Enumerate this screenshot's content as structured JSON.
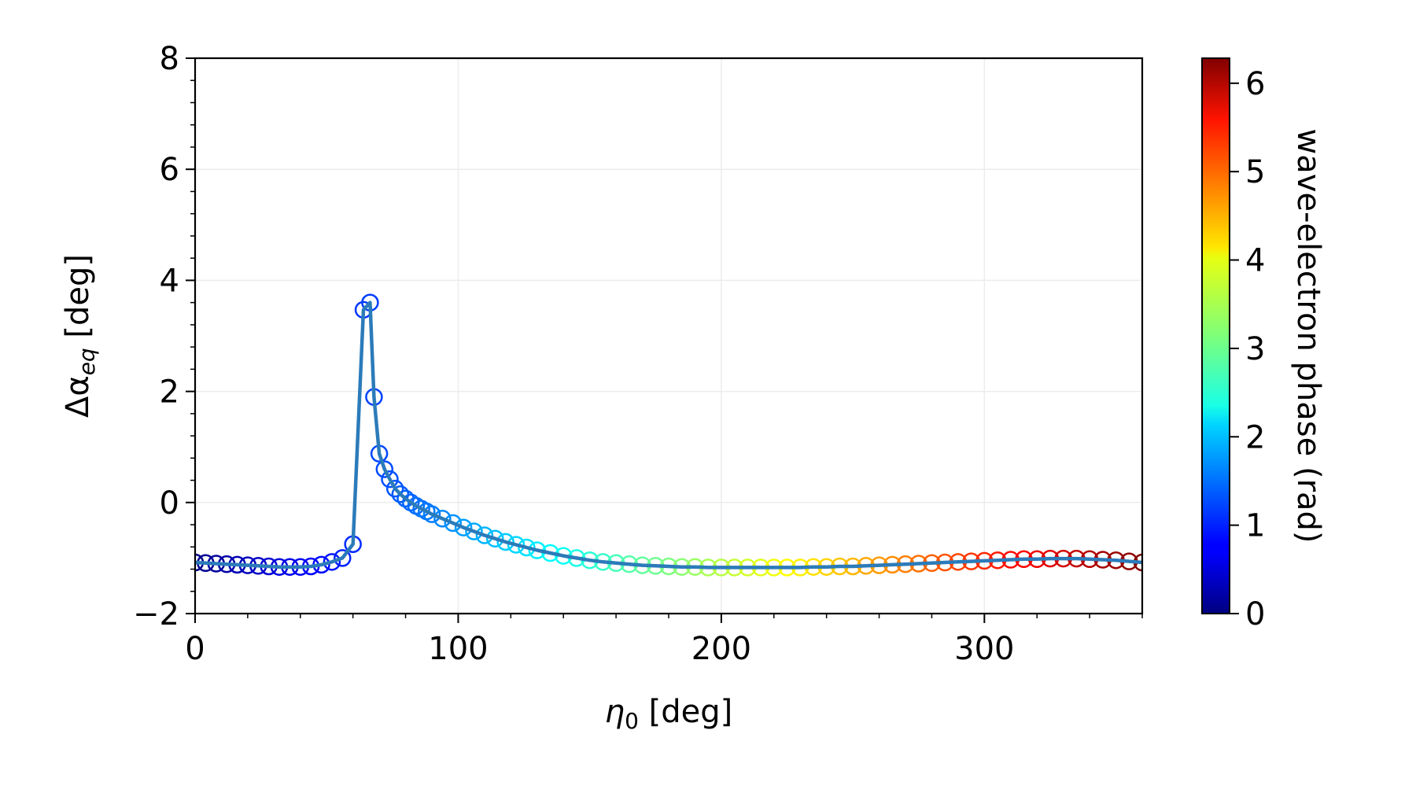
{
  "chart_data": {
    "type": "scatter",
    "xlabel_symbol": "η",
    "xlabel_sub": "0",
    "xlabel_unit": " [deg]",
    "ylabel_symbol": "Δα",
    "ylabel_sub": "eq",
    "ylabel_unit": " [deg]",
    "xlim": [
      0,
      360
    ],
    "ylim": [
      -2,
      8
    ],
    "xticks": [
      0,
      100,
      200,
      300
    ],
    "yticks": [
      -2,
      0,
      2,
      4,
      6,
      8
    ],
    "ytick_labels": [
      "−2",
      "0",
      "2",
      "4",
      "6",
      "8"
    ],
    "grid": true,
    "line_color": "#2b7bba",
    "colorbar": {
      "label": "wave-electron phase (rad)",
      "colormap": "jet",
      "range": [
        0,
        6.283
      ],
      "ticks": [
        0,
        1,
        2,
        3,
        4,
        5,
        6
      ]
    },
    "x": [
      0,
      4,
      8,
      12,
      16,
      20,
      24,
      28,
      32,
      36,
      40,
      44,
      48,
      52,
      56,
      60,
      64,
      66.5,
      68,
      70,
      72,
      74,
      76,
      78,
      80,
      82,
      84,
      86,
      88,
      90,
      94,
      98,
      102,
      106,
      110,
      114,
      118,
      122,
      126,
      130,
      135,
      140,
      145,
      150,
      155,
      160,
      165,
      170,
      175,
      180,
      185,
      190,
      195,
      200,
      205,
      210,
      215,
      220,
      225,
      230,
      235,
      240,
      245,
      250,
      255,
      260,
      265,
      270,
      275,
      280,
      285,
      290,
      295,
      300,
      305,
      310,
      315,
      320,
      325,
      330,
      335,
      340,
      345,
      350,
      355,
      360
    ],
    "y": [
      -1.08,
      -1.09,
      -1.1,
      -1.11,
      -1.12,
      -1.13,
      -1.14,
      -1.15,
      -1.16,
      -1.16,
      -1.16,
      -1.15,
      -1.12,
      -1.07,
      -1.0,
      -0.75,
      3.47,
      3.6,
      1.9,
      0.88,
      0.6,
      0.42,
      0.25,
      0.15,
      0.07,
      0.0,
      -0.06,
      -0.11,
      -0.16,
      -0.21,
      -0.29,
      -0.37,
      -0.45,
      -0.52,
      -0.59,
      -0.65,
      -0.71,
      -0.76,
      -0.81,
      -0.86,
      -0.91,
      -0.96,
      -1.0,
      -1.04,
      -1.07,
      -1.09,
      -1.11,
      -1.13,
      -1.14,
      -1.15,
      -1.16,
      -1.16,
      -1.17,
      -1.17,
      -1.17,
      -1.17,
      -1.17,
      -1.17,
      -1.17,
      -1.17,
      -1.16,
      -1.16,
      -1.15,
      -1.15,
      -1.14,
      -1.13,
      -1.12,
      -1.11,
      -1.1,
      -1.09,
      -1.08,
      -1.07,
      -1.06,
      -1.05,
      -1.04,
      -1.03,
      -1.02,
      -1.02,
      -1.01,
      -1.01,
      -1.01,
      -1.02,
      -1.03,
      -1.04,
      -1.06,
      -1.08
    ],
    "phase": [
      0.05,
      0.12,
      0.18,
      0.25,
      0.32,
      0.38,
      0.45,
      0.52,
      0.58,
      0.65,
      0.72,
      0.78,
      0.85,
      0.92,
      0.98,
      1.05,
      1.12,
      1.16,
      1.19,
      1.22,
      1.25,
      1.28,
      1.31,
      1.34,
      1.38,
      1.41,
      1.45,
      1.48,
      1.51,
      1.55,
      1.62,
      1.69,
      1.76,
      1.83,
      1.9,
      1.97,
      2.04,
      2.11,
      2.18,
      2.25,
      2.34,
      2.43,
      2.51,
      2.6,
      2.69,
      2.78,
      2.87,
      2.96,
      3.04,
      3.13,
      3.22,
      3.31,
      3.4,
      3.49,
      3.58,
      3.66,
      3.75,
      3.84,
      3.93,
      4.02,
      4.1,
      4.19,
      4.28,
      4.37,
      4.46,
      4.54,
      4.63,
      4.72,
      4.81,
      4.9,
      4.99,
      5.07,
      5.16,
      5.25,
      5.34,
      5.43,
      5.51,
      5.6,
      5.69,
      5.78,
      5.87,
      5.95,
      6.04,
      6.11,
      6.18,
      6.26
    ]
  }
}
